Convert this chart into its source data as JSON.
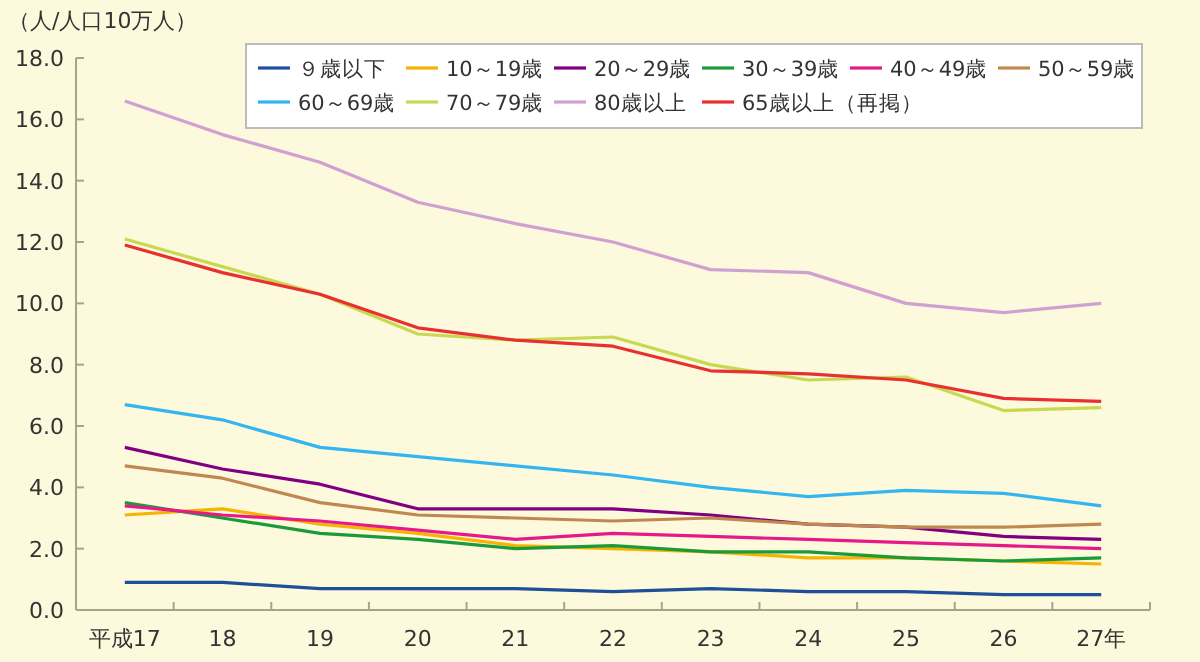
{
  "chart_data": {
    "type": "line",
    "ylabel": "（人/人口10万人）",
    "categories": [
      "平成17",
      "18",
      "19",
      "20",
      "21",
      "22",
      "23",
      "24",
      "25",
      "26",
      "27年"
    ],
    "ylim": [
      0,
      18
    ],
    "yticks": [
      {
        "value": 0,
        "label": "0.0"
      },
      {
        "value": 2,
        "label": "2.0"
      },
      {
        "value": 4,
        "label": "4.0"
      },
      {
        "value": 6,
        "label": "6.0"
      },
      {
        "value": 8,
        "label": "8.0"
      },
      {
        "value": 10,
        "label": "10.0"
      },
      {
        "value": 12,
        "label": "12.0"
      },
      {
        "value": 14,
        "label": "14.0"
      },
      {
        "value": 16,
        "label": "16.0"
      },
      {
        "value": 18,
        "label": "18.0"
      }
    ],
    "grid": false,
    "legend": "top",
    "marker": "none",
    "line_style": "solid",
    "series": [
      {
        "name": "９歳以下",
        "color": "#1f4e9a",
        "values": [
          0.9,
          0.9,
          0.7,
          0.7,
          0.7,
          0.6,
          0.7,
          0.6,
          0.6,
          0.5,
          0.5
        ]
      },
      {
        "name": "10～19歳",
        "color": "#f5b400",
        "values": [
          3.1,
          3.3,
          2.8,
          2.5,
          2.1,
          2.0,
          1.9,
          1.7,
          1.7,
          1.6,
          1.5
        ]
      },
      {
        "name": "20～29歳",
        "color": "#800080",
        "values": [
          5.3,
          4.6,
          4.1,
          3.3,
          3.3,
          3.3,
          3.1,
          2.8,
          2.7,
          2.4,
          2.3
        ]
      },
      {
        "name": "30～39歳",
        "color": "#1a9a3a",
        "values": [
          3.5,
          3.0,
          2.5,
          2.3,
          2.0,
          2.1,
          1.9,
          1.9,
          1.7,
          1.6,
          1.7
        ]
      },
      {
        "name": "40～49歳",
        "color": "#e6198a",
        "values": [
          3.4,
          3.1,
          2.9,
          2.6,
          2.3,
          2.5,
          2.4,
          2.3,
          2.2,
          2.1,
          2.0
        ]
      },
      {
        "name": "50～59歳",
        "color": "#c08850",
        "values": [
          4.7,
          4.3,
          3.5,
          3.1,
          3.0,
          2.9,
          3.0,
          2.8,
          2.7,
          2.7,
          2.8
        ]
      },
      {
        "name": "60～69歳",
        "color": "#33b5f0",
        "values": [
          6.7,
          6.2,
          5.3,
          5.0,
          4.7,
          4.4,
          4.0,
          3.7,
          3.9,
          3.8,
          3.4
        ]
      },
      {
        "name": "70～79歳",
        "color": "#c8d850",
        "values": [
          12.1,
          11.2,
          10.3,
          9.0,
          8.8,
          8.9,
          8.0,
          7.5,
          7.6,
          6.5,
          6.6
        ]
      },
      {
        "name": "80歳以上",
        "color": "#d0a0d0",
        "values": [
          16.6,
          15.5,
          14.6,
          13.3,
          12.6,
          12.0,
          11.1,
          11.0,
          10.0,
          9.7,
          10.0
        ]
      },
      {
        "name": "65歳以上（再掲）",
        "color": "#e83030",
        "values": [
          11.9,
          11.0,
          10.3,
          9.2,
          8.8,
          8.6,
          7.8,
          7.7,
          7.5,
          6.9,
          6.8
        ]
      }
    ]
  }
}
